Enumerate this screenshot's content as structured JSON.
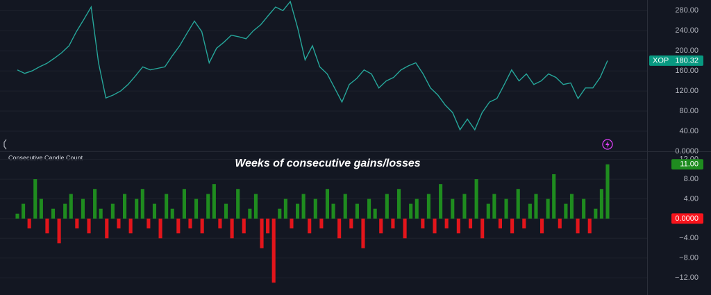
{
  "chart_data": [
    {
      "type": "line",
      "color": "#26a69a",
      "values": [
        162,
        155,
        160,
        168,
        175,
        185,
        196,
        210,
        238,
        262,
        287,
        176,
        106,
        112,
        120,
        133,
        150,
        168,
        162,
        165,
        168,
        190,
        210,
        235,
        259,
        238,
        176,
        205,
        217,
        231,
        228,
        224,
        240,
        252,
        270,
        287,
        280,
        298,
        245,
        182,
        210,
        168,
        154,
        126,
        98,
        133,
        145,
        162,
        154,
        126,
        140,
        147,
        162,
        170,
        176,
        154,
        126,
        112,
        92,
        77,
        43,
        64,
        43,
        77,
        98,
        105,
        133,
        162,
        140,
        154,
        133,
        140,
        154,
        147,
        133,
        136,
        105,
        126,
        126,
        147,
        180.32
      ],
      "ylim": [
        0,
        301
      ],
      "yticks": [
        {
          "value": 0,
          "label": "0.0000"
        },
        {
          "value": 40,
          "label": "40.00"
        },
        {
          "value": 80,
          "label": "80.00"
        },
        {
          "value": 120,
          "label": "120.00"
        },
        {
          "value": 160,
          "label": "160.00"
        },
        {
          "value": 200,
          "label": "200.00"
        },
        {
          "value": 240,
          "label": "240.00"
        },
        {
          "value": 280,
          "label": "280.00"
        }
      ],
      "grid": true,
      "markers": [
        {
          "value": 180.32,
          "symbol": "XOP",
          "label": "180.32",
          "color": "#089981"
        }
      ]
    },
    {
      "type": "bar",
      "title": "Weeks of consecutive gains/losses",
      "subtitle": "Consecutive Candle Count",
      "positive_color": "#1f8c1f",
      "negative_color": "#e3151b",
      "values": [
        1,
        3,
        -2,
        8,
        4,
        -3,
        2,
        -5,
        3,
        5,
        -2,
        4,
        -3,
        6,
        2,
        -4,
        3,
        -2,
        5,
        -3,
        4,
        6,
        -2,
        3,
        -4,
        5,
        2,
        -3,
        6,
        -2,
        4,
        -3,
        5,
        7,
        -2,
        3,
        -4,
        6,
        -3,
        2,
        5,
        -6,
        -3,
        -13,
        2,
        4,
        -2,
        3,
        5,
        -3,
        4,
        -2,
        6,
        3,
        -4,
        5,
        -2,
        3,
        -6,
        4,
        2,
        -3,
        5,
        -2,
        6,
        -4,
        3,
        4,
        -2,
        5,
        -3,
        7,
        -2,
        4,
        -3,
        5,
        -2,
        8,
        -4,
        3,
        5,
        -2,
        4,
        -3,
        6,
        -2,
        3,
        5,
        -3,
        4,
        9,
        -2,
        3,
        5,
        -3,
        4,
        -3,
        2,
        6,
        11
      ],
      "ylim": [
        -15.5,
        13.5
      ],
      "yticks": [
        {
          "value": 12,
          "label": "12.00"
        },
        {
          "value": 8,
          "label": "8.00"
        },
        {
          "value": 4,
          "label": "4.00"
        },
        {
          "value": 0,
          "label": "0.0000"
        },
        {
          "value": -4,
          "label": "−4.00"
        },
        {
          "value": -8,
          "label": "−8.00"
        },
        {
          "value": -12,
          "label": "−12.00"
        }
      ],
      "grid": true,
      "markers": [
        {
          "value": 11,
          "label": "11.00",
          "color": "#1f8c1f"
        },
        {
          "value": 0,
          "label": "0.0000",
          "color": "#f7141c"
        }
      ]
    }
  ]
}
